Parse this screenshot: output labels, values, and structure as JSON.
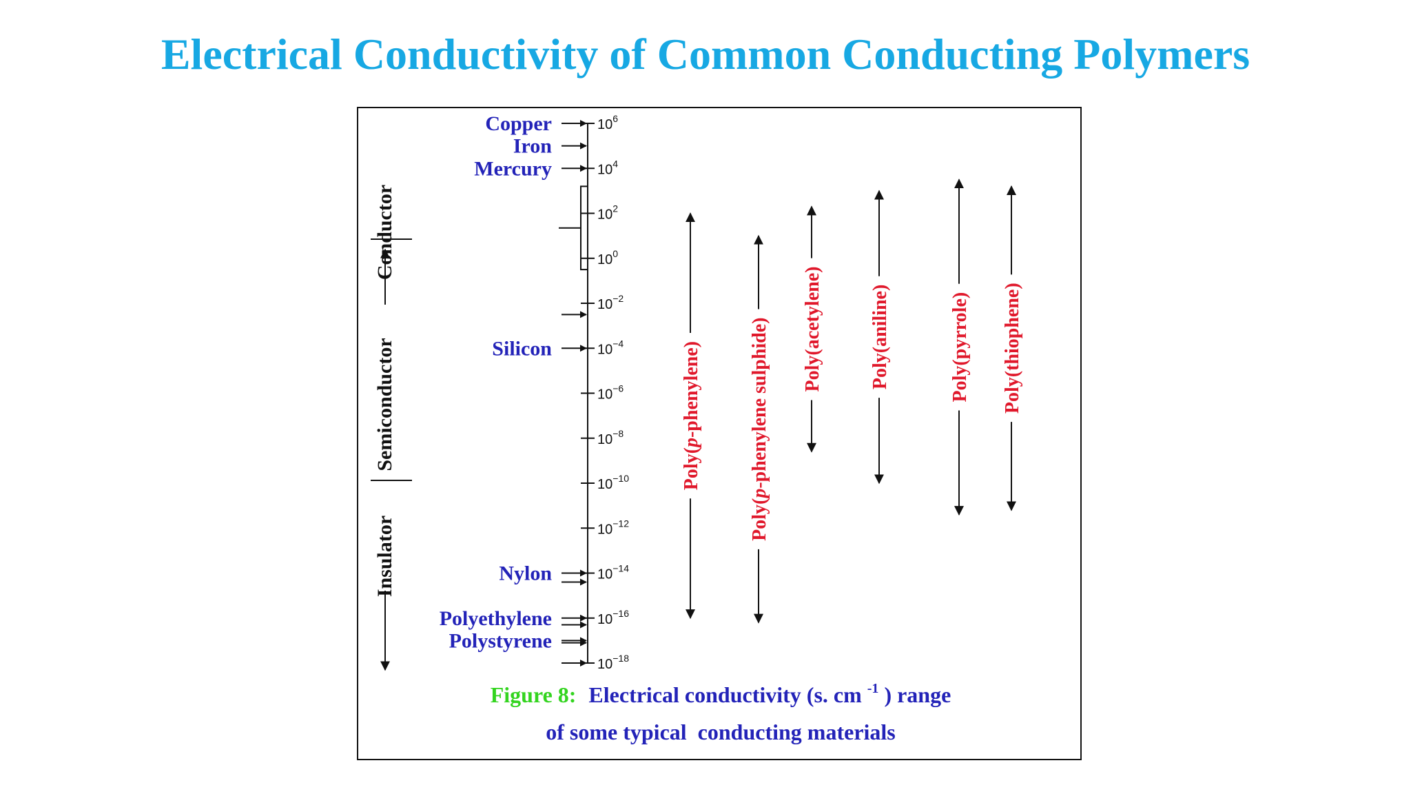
{
  "title": "Electrical Conductivity of Common Conducting Polymers",
  "categories": {
    "conductor": "Conductor",
    "semiconductor": "Semiconductor",
    "insulator": "Insulator"
  },
  "scale": {
    "ticks": [
      {
        "base": "10",
        "exp": "6",
        "value": 6
      },
      {
        "base": "10",
        "exp": "4",
        "value": 4
      },
      {
        "base": "10",
        "exp": "2",
        "value": 2
      },
      {
        "base": "10",
        "exp": "0",
        "value": 0
      },
      {
        "base": "10",
        "exp": "−2",
        "value": -2
      },
      {
        "base": "10",
        "exp": "−4",
        "value": -4
      },
      {
        "base": "10",
        "exp": "−6",
        "value": -6
      },
      {
        "base": "10",
        "exp": "−8",
        "value": -8
      },
      {
        "base": "10",
        "exp": "−10",
        "value": -10
      },
      {
        "base": "10",
        "exp": "−12",
        "value": -12
      },
      {
        "base": "10",
        "exp": "−14",
        "value": -14
      },
      {
        "base": "10",
        "exp": "−16",
        "value": -16
      },
      {
        "base": "10",
        "exp": "−18",
        "value": -18
      }
    ]
  },
  "materials": [
    {
      "name": "Copper",
      "value": 6
    },
    {
      "name": "Iron",
      "value": 5
    },
    {
      "name": "Mercury",
      "value": 4
    },
    {
      "name": "Silicon",
      "value": -4
    },
    {
      "name": "Nylon",
      "value": -14
    },
    {
      "name": "Polyethylene",
      "value": -16
    },
    {
      "name": "Polystyrene",
      "value": -17
    }
  ],
  "unlabeled_markers": [
    -2.5,
    -14.4,
    -16.3,
    -17.1,
    -18
  ],
  "metal_bracket": {
    "from": 3.2,
    "to": -0.5
  },
  "polymers": [
    {
      "name": "Poly(",
      "italic": "p",
      "rest": "-phenylene)",
      "max": 2,
      "min": -16
    },
    {
      "name": "Poly(",
      "italic": "p",
      "rest": "-phenylene sulphide)",
      "max": 1,
      "min": -16.2
    },
    {
      "name": "Poly(acetylene)",
      "italic": "",
      "rest": "",
      "max": 2.3,
      "min": -8.6
    },
    {
      "name": "Poly(aniline)",
      "italic": "",
      "rest": "",
      "max": 3,
      "min": -10
    },
    {
      "name": "Poly(pyrrole)",
      "italic": "",
      "rest": "",
      "max": 3.5,
      "min": -11.4
    },
    {
      "name": "Poly(thiophene)",
      "italic": "",
      "rest": "",
      "max": 3.2,
      "min": -11.2
    }
  ],
  "caption": {
    "label": "Figure 8:",
    "line1_text": "Electrical conductivity (s. cm",
    "line1_sup": "-1",
    "line1_end": ") range",
    "line2": "of some typical  conducting materials"
  },
  "colors": {
    "title": "#17a8e3",
    "material": "#2323b8",
    "polymer": "#e0182b",
    "figure_label": "#33d41f",
    "caption": "#2323b8",
    "axis": "#111111"
  }
}
